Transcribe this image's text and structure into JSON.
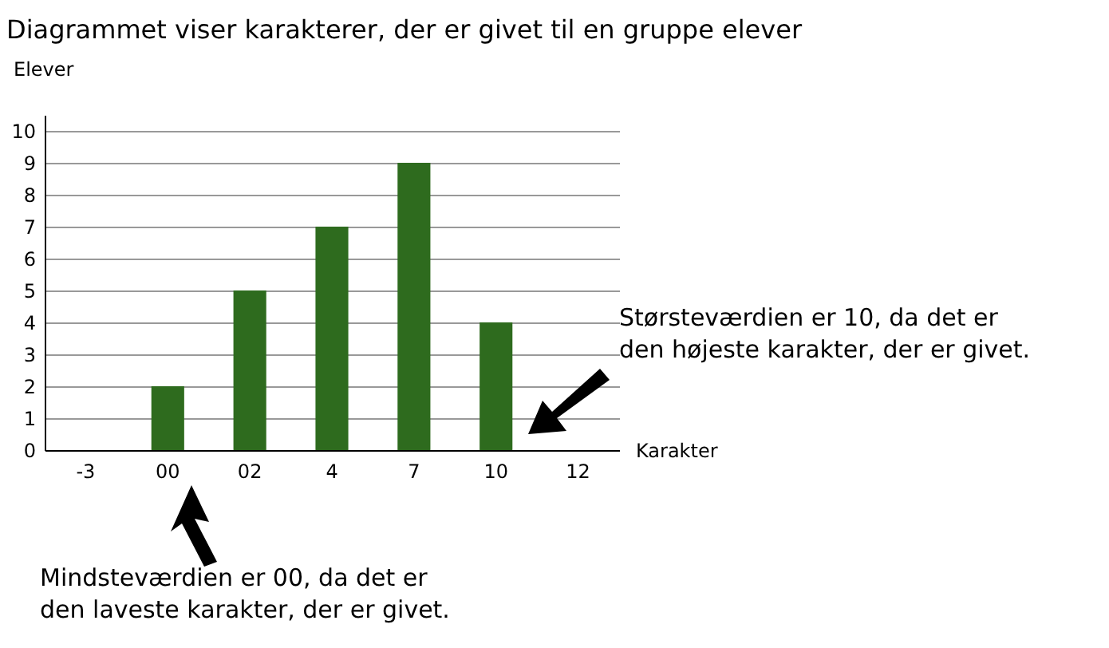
{
  "chart_data": {
    "type": "bar",
    "title": "Diagrammet viser karakterer, der er givet til en gruppe elever",
    "xlabel": "Karakter",
    "ylabel": "Elever",
    "categories": [
      "-3",
      "00",
      "02",
      "4",
      "7",
      "10",
      "12"
    ],
    "values": [
      0,
      2,
      5,
      7,
      9,
      4,
      0
    ],
    "color": "#2e6b1e",
    "ylim": [
      0,
      10.5
    ],
    "yticks": [
      0,
      1,
      2,
      3,
      4,
      5,
      6,
      7,
      8,
      9,
      10
    ],
    "grid": "y",
    "annotations": [
      "Størsteværdien er 10, da det er den højeste karakter, der er givet.",
      "Mindsteværdien er 00, da det er den laveste karakter, der er givet."
    ]
  }
}
